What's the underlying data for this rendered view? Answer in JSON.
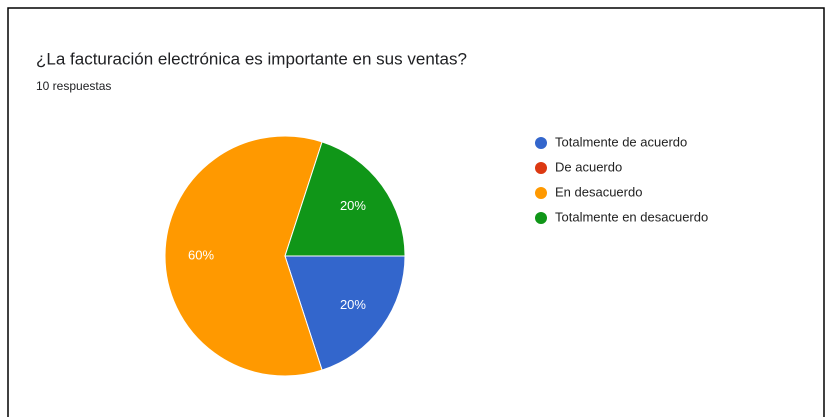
{
  "chart_data": {
    "type": "pie",
    "title": "¿La facturación electrónica es importante en sus ventas?",
    "subtitle": "10 respuestas",
    "categories": [
      "Totalmente de acuerdo",
      "De acuerdo",
      "En desacuerdo",
      "Totalmente en desacuerdo"
    ],
    "values": [
      20,
      0,
      60,
      20
    ],
    "value_labels": [
      "20%",
      null,
      "60%",
      "20%"
    ],
    "colors": [
      "#3366cc",
      "#dc3912",
      "#ff9900",
      "#109618"
    ],
    "legend": "right"
  }
}
